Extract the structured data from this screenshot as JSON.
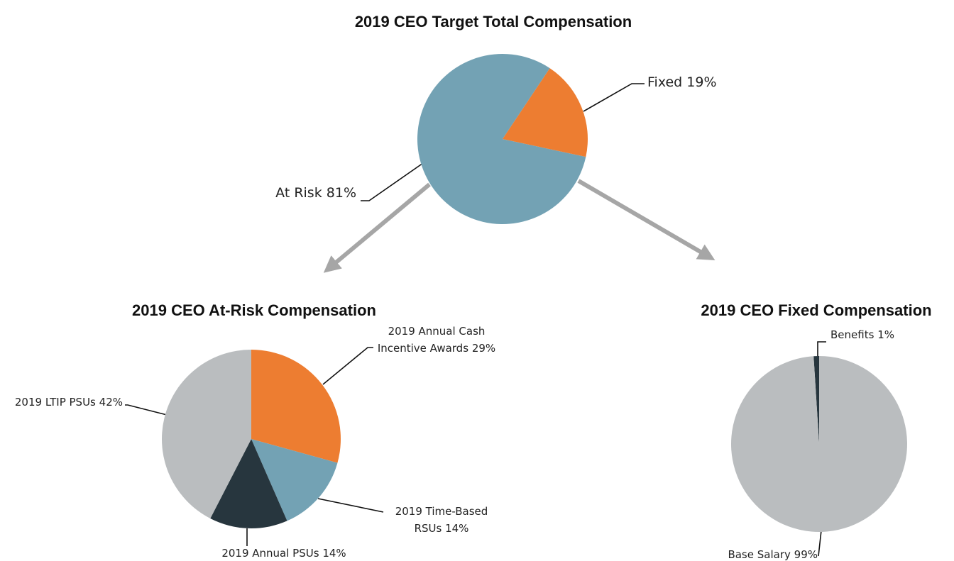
{
  "chart_data": [
    {
      "type": "pie",
      "title": "2019 CEO Target Total Compensation",
      "categories": [
        "At Risk",
        "Fixed"
      ],
      "values": [
        81,
        19
      ],
      "value_labels": [
        "81%",
        "19%"
      ],
      "colors": [
        "#73a2b4",
        "#ed7d31"
      ]
    },
    {
      "type": "pie",
      "title": "2019 CEO At-Risk Compensation",
      "categories": [
        "2019 Annual Cash Incentive Awards",
        "2019 Time-Based RSUs",
        "2019 Annual PSUs",
        "2019 LTIP PSUs"
      ],
      "values": [
        29,
        14,
        14,
        42
      ],
      "value_labels": [
        "29%",
        "14%",
        "14%",
        "42%"
      ],
      "colors": [
        "#ed7d31",
        "#73a2b4",
        "#27363e",
        "#babdbf"
      ]
    },
    {
      "type": "pie",
      "title": "2019 CEO Fixed Compensation",
      "categories": [
        "Benefits",
        "Base Salary"
      ],
      "values": [
        1,
        99
      ],
      "value_labels": [
        "1%",
        "99%"
      ],
      "colors": [
        "#27363e",
        "#babdbf"
      ]
    }
  ]
}
